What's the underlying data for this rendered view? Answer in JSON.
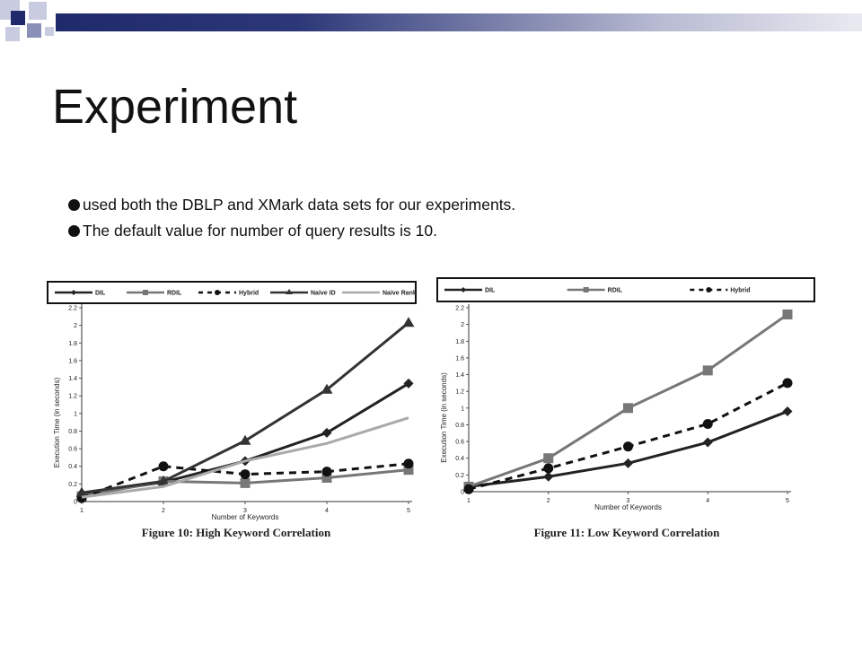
{
  "slide": {
    "title": "Experiment",
    "bullets": [
      "used both the DBLP and XMark data sets for our experiments.",
      "The default value for number of query results is 10."
    ]
  },
  "colors": {
    "header_bar": "#1f2a6b",
    "accent_light": "#c9cce0",
    "accent_mid": "#8a8fb8"
  },
  "chart_data": [
    {
      "type": "line",
      "title": "Figure 10: High Keyword Correlation",
      "xlabel": "Number of Keywords",
      "ylabel": "Execution Time (in seconds)",
      "x": [
        1,
        2,
        3,
        4,
        5
      ],
      "xticks": [
        "1",
        "2",
        "3",
        "4",
        "5"
      ],
      "yticks": [
        "0",
        "0.2",
        "0.4",
        "0.6",
        "0.8",
        "1",
        "1.2",
        "1.4",
        "1.6",
        "1.8",
        "2",
        "2.2"
      ],
      "ylim": [
        0,
        2.2
      ],
      "legend_position": "top",
      "series": [
        {
          "name": "DIL",
          "values": [
            0.08,
            0.22,
            0.46,
            0.78,
            1.34
          ],
          "color": "#222222",
          "marker": "diamond",
          "dash": false
        },
        {
          "name": "RDIL",
          "values": [
            0.06,
            0.23,
            0.21,
            0.27,
            0.36
          ],
          "color": "#777777",
          "marker": "square",
          "dash": false
        },
        {
          "name": "Hybrid",
          "values": [
            0.04,
            0.4,
            0.31,
            0.34,
            0.43
          ],
          "color": "#111111",
          "marker": "circle",
          "dash": true
        },
        {
          "name": "Naive ID",
          "values": [
            0.1,
            0.23,
            0.69,
            1.27,
            2.03
          ],
          "color": "#333333",
          "marker": "triangle",
          "dash": false
        },
        {
          "name": "Naive Rank",
          "values": [
            0.05,
            0.17,
            0.46,
            0.66,
            0.95
          ],
          "color": "#aaaaaa",
          "marker": "none",
          "dash": false
        }
      ]
    },
    {
      "type": "line",
      "title": "Figure 11: Low Keyword Correlation",
      "xlabel": "Number of Keywords",
      "ylabel": "Execution Time (in seconds)",
      "x": [
        1,
        2,
        3,
        4,
        5
      ],
      "xticks": [
        "1",
        "2",
        "3",
        "4",
        "5"
      ],
      "yticks": [
        "0",
        "0.2",
        "0.4",
        "0.6",
        "0.8",
        "1",
        "1.2",
        "1.4",
        "1.6",
        "1.8",
        "2",
        "2.2"
      ],
      "ylim": [
        0,
        2.2
      ],
      "legend_position": "top",
      "series": [
        {
          "name": "DIL",
          "values": [
            0.06,
            0.18,
            0.34,
            0.59,
            0.96
          ],
          "color": "#222222",
          "marker": "diamond",
          "dash": false
        },
        {
          "name": "RDIL",
          "values": [
            0.06,
            0.4,
            1.0,
            1.45,
            2.12
          ],
          "color": "#777777",
          "marker": "square",
          "dash": false
        },
        {
          "name": "Hybrid",
          "values": [
            0.03,
            0.28,
            0.54,
            0.81,
            1.3
          ],
          "color": "#111111",
          "marker": "circle",
          "dash": true
        }
      ]
    }
  ]
}
